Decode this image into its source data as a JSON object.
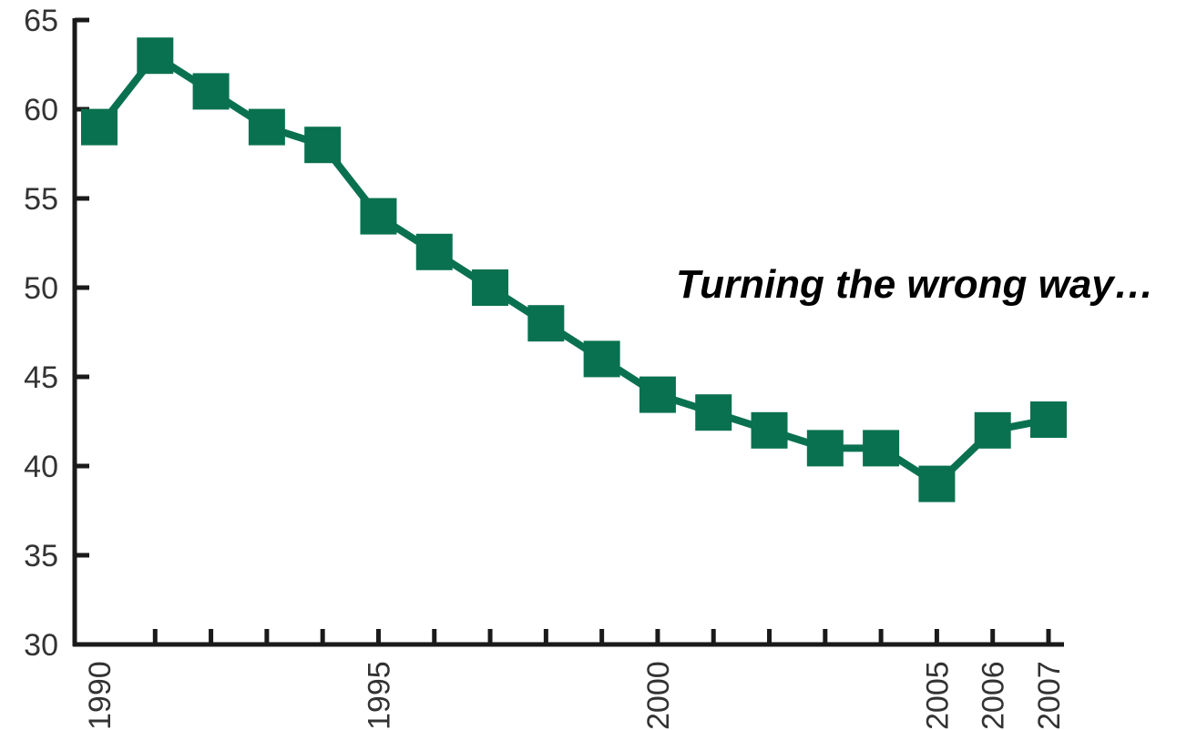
{
  "chart_data": {
    "type": "line",
    "title": "",
    "xlabel": "",
    "ylabel": "",
    "x": [
      1990,
      1991,
      1992,
      1993,
      1994,
      1995,
      1996,
      1997,
      1998,
      1999,
      2000,
      2001,
      2002,
      2003,
      2004,
      2005,
      2006,
      2007
    ],
    "series": [
      {
        "values": [
          59,
          63,
          61,
          59,
          58,
          54,
          52,
          50,
          48,
          46,
          44,
          43,
          42,
          41,
          41,
          39,
          42,
          42.6
        ]
      }
    ],
    "ylim": [
      30,
      65
    ],
    "y_ticks": [
      "30",
      "35",
      "40",
      "45",
      "50",
      "55",
      "60",
      "65"
    ],
    "x_tick_labels": [
      "1990",
      "1995",
      "2000",
      "2005",
      "2006",
      "2007"
    ],
    "grid": false,
    "line_color": "#0a7150",
    "marker": "square"
  },
  "annotation": "Turning the wrong way…"
}
